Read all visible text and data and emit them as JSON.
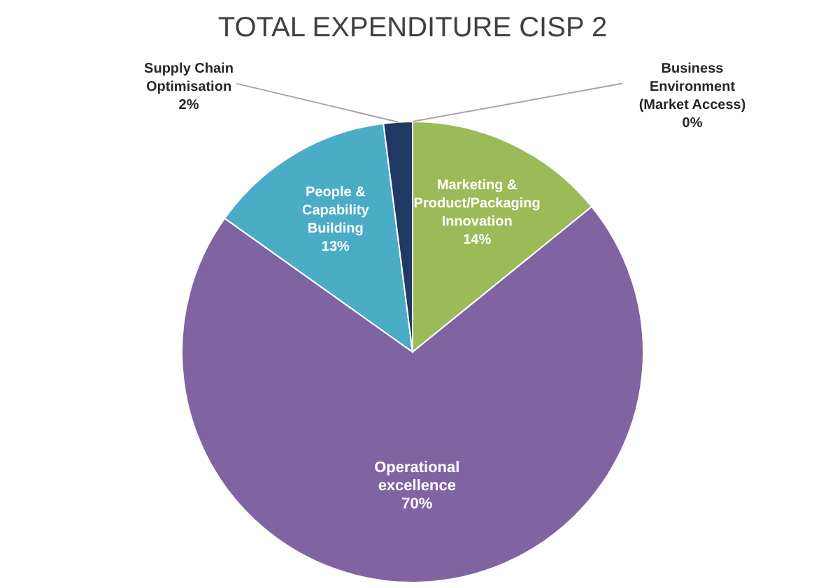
{
  "chart_data": {
    "type": "pie",
    "title": "TOTAL EXPENDITURE CISP 2",
    "categories": [
      "Business Environment (Market Access)",
      "Marketing & Product/Packaging Innovation",
      "Operational excellence",
      "People & Capability Building",
      "Supply Chain Optimisation"
    ],
    "values": [
      0,
      14,
      70,
      13,
      2
    ],
    "value_labels": [
      "0%",
      "14%",
      "70%",
      "13%",
      "2%"
    ],
    "colors": [
      "#c0504d",
      "#9bbb59",
      "#8064a2",
      "#4bacc6",
      "#1f3864"
    ]
  }
}
